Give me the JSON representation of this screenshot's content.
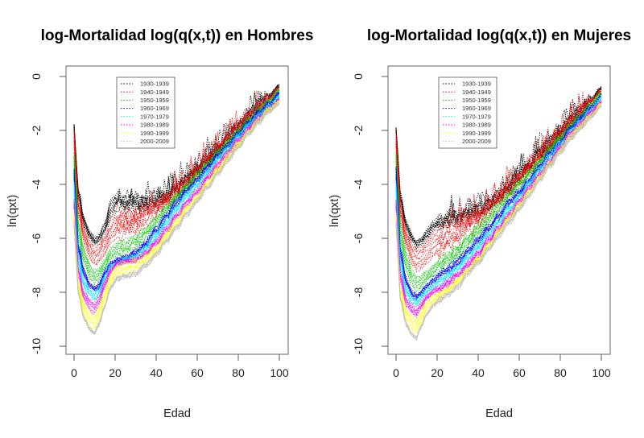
{
  "chart_data": [
    {
      "type": "line",
      "title": "log-Mortalidad log(q(x,t)) en Hombres",
      "xlabel": "Edad",
      "ylabel": "ln(qxt)",
      "xlim": [
        0,
        100
      ],
      "ylim": [
        -10,
        0
      ],
      "xticks": [
        "0",
        "20",
        "40",
        "60",
        "80",
        "100"
      ],
      "yticks": [
        "0",
        "-2",
        "-4",
        "-6",
        "-8",
        "-10"
      ],
      "line_style": "dotted",
      "legend": {
        "position": "top-left",
        "entries": [
          {
            "label": "1930-1939",
            "color": "#000000"
          },
          {
            "label": "1940-1949",
            "color": "#ff0000"
          },
          {
            "label": "1950-1959",
            "color": "#00cc00"
          },
          {
            "label": "1960-1969",
            "color": "#0000ff"
          },
          {
            "label": "1970-1979",
            "color": "#00e5ff"
          },
          {
            "label": "1980-1989",
            "color": "#ff00ff"
          },
          {
            "label": "1990-1999",
            "color": "#ffff00"
          },
          {
            "label": "2000-2009",
            "color": "#bebebe"
          }
        ]
      },
      "series": [
        {
          "name": "1930-1939",
          "color": "#000000",
          "x": [
            0,
            2,
            5,
            8,
            10,
            12,
            15,
            18,
            21,
            25,
            30,
            35,
            40,
            45,
            50,
            55,
            60,
            65,
            70,
            75,
            80,
            85,
            90,
            95,
            100
          ],
          "y": [
            -1.8,
            -4.2,
            -5.3,
            -5.8,
            -6.0,
            -5.9,
            -5.4,
            -4.6,
            -4.3,
            -4.4,
            -4.6,
            -4.6,
            -4.5,
            -4.4,
            -4.1,
            -3.8,
            -3.4,
            -3.0,
            -2.6,
            -2.2,
            -1.8,
            -1.4,
            -1.0,
            -0.7,
            -0.3
          ]
        },
        {
          "name": "1940-1949",
          "color": "#ff0000",
          "x": [
            0,
            2,
            5,
            8,
            10,
            12,
            15,
            18,
            21,
            25,
            30,
            35,
            40,
            45,
            50,
            55,
            60,
            65,
            70,
            75,
            80,
            85,
            90,
            95,
            100
          ],
          "y": [
            -1.9,
            -4.5,
            -5.6,
            -6.1,
            -6.3,
            -6.2,
            -5.9,
            -5.3,
            -5.0,
            -5.0,
            -5.0,
            -4.8,
            -4.7,
            -4.5,
            -4.2,
            -3.9,
            -3.5,
            -3.1,
            -2.7,
            -2.3,
            -1.9,
            -1.5,
            -1.1,
            -0.8,
            -0.4
          ]
        },
        {
          "name": "1950-1959",
          "color": "#00cc00",
          "x": [
            0,
            2,
            5,
            8,
            10,
            12,
            15,
            18,
            21,
            25,
            30,
            35,
            40,
            45,
            50,
            55,
            60,
            65,
            70,
            75,
            80,
            85,
            90,
            95,
            100
          ],
          "y": [
            -2.8,
            -5.3,
            -6.4,
            -7.0,
            -7.2,
            -7.1,
            -6.8,
            -6.4,
            -6.2,
            -6.1,
            -5.9,
            -5.6,
            -5.2,
            -4.8,
            -4.4,
            -4.0,
            -3.6,
            -3.2,
            -2.8,
            -2.4,
            -2.0,
            -1.6,
            -1.2,
            -0.9,
            -0.5
          ]
        },
        {
          "name": "1960-1969",
          "color": "#0000ff",
          "x": [
            0,
            2,
            5,
            8,
            10,
            12,
            15,
            18,
            21,
            25,
            30,
            35,
            40,
            45,
            50,
            55,
            60,
            65,
            70,
            75,
            80,
            85,
            90,
            95,
            100
          ],
          "y": [
            -3.4,
            -6.2,
            -7.2,
            -7.7,
            -7.8,
            -7.7,
            -7.2,
            -6.9,
            -6.8,
            -6.7,
            -6.5,
            -6.1,
            -5.6,
            -5.1,
            -4.6,
            -4.2,
            -3.8,
            -3.3,
            -2.9,
            -2.5,
            -2.1,
            -1.7,
            -1.3,
            -1.0,
            -0.6
          ]
        },
        {
          "name": "1970-1979",
          "color": "#00e5ff",
          "x": [
            0,
            2,
            5,
            8,
            10,
            12,
            15,
            18,
            21,
            25,
            30,
            35,
            40,
            45,
            50,
            55,
            60,
            65,
            70,
            75,
            80,
            85,
            90,
            95,
            100
          ],
          "y": [
            -3.9,
            -6.6,
            -7.5,
            -7.9,
            -8.0,
            -7.9,
            -7.4,
            -7.0,
            -6.9,
            -6.8,
            -6.6,
            -6.3,
            -5.8,
            -5.3,
            -4.8,
            -4.3,
            -3.9,
            -3.5,
            -3.0,
            -2.6,
            -2.2,
            -1.8,
            -1.4,
            -1.1,
            -0.7
          ]
        },
        {
          "name": "1980-1989",
          "color": "#ff00ff",
          "x": [
            0,
            2,
            5,
            8,
            10,
            12,
            15,
            18,
            21,
            25,
            30,
            35,
            40,
            45,
            50,
            55,
            60,
            65,
            70,
            75,
            80,
            85,
            90,
            95,
            100
          ],
          "y": [
            -4.5,
            -7.1,
            -8.0,
            -8.3,
            -8.4,
            -8.2,
            -7.6,
            -7.1,
            -6.9,
            -6.8,
            -6.8,
            -6.5,
            -6.1,
            -5.6,
            -5.1,
            -4.6,
            -4.2,
            -3.7,
            -3.2,
            -2.8,
            -2.3,
            -1.9,
            -1.5,
            -1.2,
            -0.8
          ]
        },
        {
          "name": "1990-1999",
          "color": "#ffff00",
          "x": [
            0,
            2,
            5,
            8,
            10,
            12,
            15,
            18,
            21,
            25,
            30,
            35,
            40,
            45,
            50,
            55,
            60,
            65,
            70,
            75,
            80,
            85,
            90,
            95,
            100
          ],
          "y": [
            -5.0,
            -7.5,
            -8.4,
            -8.8,
            -8.9,
            -8.6,
            -7.9,
            -7.3,
            -7.0,
            -6.9,
            -6.8,
            -6.6,
            -6.3,
            -5.8,
            -5.3,
            -4.8,
            -4.4,
            -3.9,
            -3.4,
            -2.9,
            -2.5,
            -2.0,
            -1.6,
            -1.2,
            -0.9
          ]
        },
        {
          "name": "2000-2009",
          "color": "#bebebe",
          "x": [
            0,
            2,
            5,
            8,
            10,
            12,
            15,
            18,
            21,
            25,
            30,
            35,
            40,
            45,
            50,
            55,
            60,
            65,
            70,
            75,
            80,
            85,
            90,
            95,
            100
          ],
          "y": [
            -5.4,
            -8.0,
            -9.0,
            -9.4,
            -9.5,
            -9.2,
            -8.5,
            -7.8,
            -7.5,
            -7.4,
            -7.3,
            -7.0,
            -6.6,
            -6.1,
            -5.6,
            -5.1,
            -4.6,
            -4.1,
            -3.6,
            -3.1,
            -2.6,
            -2.1,
            -1.7,
            -1.3,
            -1.0
          ]
        }
      ]
    },
    {
      "type": "line",
      "title": "log-Mortalidad log(q(x,t)) en Mujeres",
      "xlabel": "Edad",
      "ylabel": "ln(qxt)",
      "xlim": [
        0,
        100
      ],
      "ylim": [
        -10,
        0
      ],
      "xticks": [
        "0",
        "20",
        "40",
        "60",
        "80",
        "100"
      ],
      "yticks": [
        "0",
        "-2",
        "-4",
        "-6",
        "-8",
        "-10"
      ],
      "line_style": "dotted",
      "legend": {
        "position": "top-left",
        "entries": [
          {
            "label": "1930-1939",
            "color": "#000000"
          },
          {
            "label": "1940-1949",
            "color": "#ff0000"
          },
          {
            "label": "1950-1959",
            "color": "#00cc00"
          },
          {
            "label": "1960-1969",
            "color": "#0000ff"
          },
          {
            "label": "1970-1979",
            "color": "#00e5ff"
          },
          {
            "label": "1980-1989",
            "color": "#ff00ff"
          },
          {
            "label": "1990-1999",
            "color": "#ffff00"
          },
          {
            "label": "2000-2009",
            "color": "#bebebe"
          }
        ]
      },
      "series": [
        {
          "name": "1930-1939",
          "color": "#000000",
          "x": [
            0,
            2,
            5,
            8,
            10,
            12,
            15,
            18,
            21,
            25,
            30,
            35,
            40,
            45,
            50,
            55,
            60,
            65,
            70,
            75,
            80,
            85,
            90,
            95,
            100
          ],
          "y": [
            -1.9,
            -4.3,
            -5.4,
            -5.9,
            -6.1,
            -6.0,
            -5.7,
            -5.4,
            -5.3,
            -5.2,
            -5.1,
            -5.0,
            -4.9,
            -4.7,
            -4.4,
            -4.0,
            -3.6,
            -3.2,
            -2.8,
            -2.4,
            -2.0,
            -1.6,
            -1.2,
            -0.8,
            -0.4
          ]
        },
        {
          "name": "1940-1949",
          "color": "#ff0000",
          "x": [
            0,
            2,
            5,
            8,
            10,
            12,
            15,
            18,
            21,
            25,
            30,
            35,
            40,
            45,
            50,
            55,
            60,
            65,
            70,
            75,
            80,
            85,
            90,
            95,
            100
          ],
          "y": [
            -2.0,
            -4.6,
            -5.7,
            -6.2,
            -6.4,
            -6.3,
            -6.1,
            -5.8,
            -5.6,
            -5.5,
            -5.4,
            -5.2,
            -5.0,
            -4.8,
            -4.5,
            -4.1,
            -3.7,
            -3.3,
            -2.9,
            -2.5,
            -2.1,
            -1.7,
            -1.3,
            -0.9,
            -0.5
          ]
        },
        {
          "name": "1950-1959",
          "color": "#00cc00",
          "x": [
            0,
            2,
            5,
            8,
            10,
            12,
            15,
            18,
            21,
            25,
            30,
            35,
            40,
            45,
            50,
            55,
            60,
            65,
            70,
            75,
            80,
            85,
            90,
            95,
            100
          ],
          "y": [
            -2.8,
            -5.4,
            -6.5,
            -7.2,
            -7.4,
            -7.4,
            -7.2,
            -7.0,
            -6.8,
            -6.6,
            -6.3,
            -5.9,
            -5.5,
            -5.1,
            -4.7,
            -4.3,
            -3.9,
            -3.5,
            -3.1,
            -2.6,
            -2.2,
            -1.8,
            -1.4,
            -1.0,
            -0.6
          ]
        },
        {
          "name": "1960-1969",
          "color": "#0000ff",
          "x": [
            0,
            2,
            5,
            8,
            10,
            12,
            15,
            18,
            21,
            25,
            30,
            35,
            40,
            45,
            50,
            55,
            60,
            65,
            70,
            75,
            80,
            85,
            90,
            95,
            100
          ],
          "y": [
            -3.3,
            -6.3,
            -7.5,
            -8.0,
            -8.1,
            -8.0,
            -7.7,
            -7.5,
            -7.3,
            -7.1,
            -6.8,
            -6.4,
            -6.0,
            -5.5,
            -5.1,
            -4.6,
            -4.2,
            -3.8,
            -3.3,
            -2.8,
            -2.4,
            -1.9,
            -1.5,
            -1.1,
            -0.7
          ]
        },
        {
          "name": "1970-1979",
          "color": "#00e5ff",
          "x": [
            0,
            2,
            5,
            8,
            10,
            12,
            15,
            18,
            21,
            25,
            30,
            35,
            40,
            45,
            50,
            55,
            60,
            65,
            70,
            75,
            80,
            85,
            90,
            95,
            100
          ],
          "y": [
            -3.9,
            -6.7,
            -7.8,
            -8.2,
            -8.3,
            -8.1,
            -7.9,
            -7.7,
            -7.5,
            -7.3,
            -7.0,
            -6.6,
            -6.2,
            -5.8,
            -5.3,
            -4.8,
            -4.4,
            -3.9,
            -3.4,
            -2.9,
            -2.5,
            -2.0,
            -1.6,
            -1.2,
            -0.8
          ]
        },
        {
          "name": "1980-1989",
          "color": "#ff00ff",
          "x": [
            0,
            2,
            5,
            8,
            10,
            12,
            15,
            18,
            21,
            25,
            30,
            35,
            40,
            45,
            50,
            55,
            60,
            65,
            70,
            75,
            80,
            85,
            90,
            95,
            100
          ],
          "y": [
            -4.6,
            -7.2,
            -8.2,
            -8.5,
            -8.6,
            -8.4,
            -8.1,
            -7.9,
            -7.8,
            -7.6,
            -7.3,
            -6.9,
            -6.5,
            -6.0,
            -5.6,
            -5.1,
            -4.6,
            -4.1,
            -3.6,
            -3.1,
            -2.6,
            -2.1,
            -1.7,
            -1.3,
            -0.9
          ]
        },
        {
          "name": "1990-1999",
          "color": "#ffff00",
          "x": [
            0,
            2,
            5,
            8,
            10,
            12,
            15,
            18,
            21,
            25,
            30,
            35,
            40,
            45,
            50,
            55,
            60,
            65,
            70,
            75,
            80,
            85,
            90,
            95,
            100
          ],
          "y": [
            -5.0,
            -7.7,
            -8.6,
            -8.9,
            -9.0,
            -8.7,
            -8.3,
            -8.1,
            -8.0,
            -7.8,
            -7.5,
            -7.1,
            -6.7,
            -6.2,
            -5.7,
            -5.2,
            -4.7,
            -4.2,
            -3.7,
            -3.2,
            -2.7,
            -2.2,
            -1.8,
            -1.4,
            -1.0
          ]
        },
        {
          "name": "2000-2009",
          "color": "#bebebe",
          "x": [
            0,
            2,
            5,
            8,
            10,
            12,
            15,
            18,
            21,
            25,
            30,
            35,
            40,
            45,
            50,
            55,
            60,
            65,
            70,
            75,
            80,
            85,
            90,
            95,
            100
          ],
          "y": [
            -5.4,
            -8.2,
            -9.2,
            -9.6,
            -9.7,
            -9.3,
            -8.8,
            -8.5,
            -8.3,
            -8.1,
            -7.8,
            -7.3,
            -6.9,
            -6.4,
            -5.9,
            -5.4,
            -4.9,
            -4.4,
            -3.8,
            -3.3,
            -2.8,
            -2.3,
            -1.9,
            -1.5,
            -1.1
          ]
        }
      ]
    }
  ]
}
